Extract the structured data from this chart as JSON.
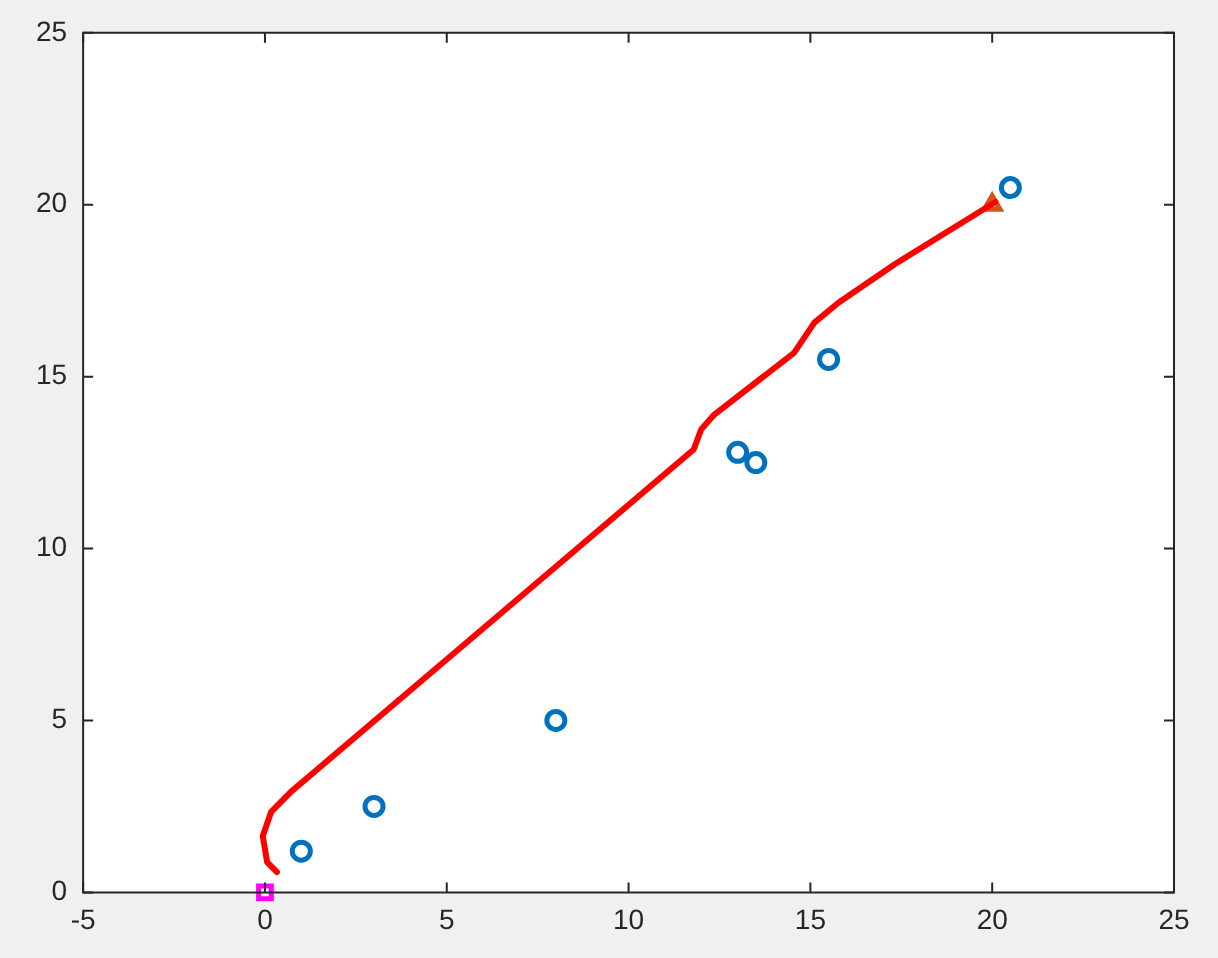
{
  "chart_data": {
    "type": "scatter",
    "xlim": [
      -5,
      25
    ],
    "ylim": [
      0,
      25
    ],
    "xticks": [
      -5,
      0,
      5,
      10,
      15,
      20,
      25
    ],
    "yticks": [
      0,
      5,
      10,
      15,
      20,
      25
    ],
    "grid": false,
    "legend": false,
    "series": [
      {
        "marker": "circle",
        "color": "#0072bd",
        "x": [
          1,
          3,
          8,
          13,
          13.5,
          15.5,
          20.5
        ],
        "values": [
          1.2,
          2.5,
          5,
          12.8,
          12.5,
          15.5,
          20.5
        ]
      },
      {
        "type": "line",
        "marker": "none",
        "line_style": "solid",
        "color": "#ff0000",
        "x": [
          0.33,
          0.06,
          -0.06,
          0.17,
          0.72,
          11.79,
          12.0,
          12.34,
          14.55,
          15.11,
          15.77,
          17.32,
          20.09
        ],
        "values": [
          0.59,
          0.88,
          1.64,
          2.34,
          2.93,
          12.88,
          13.47,
          13.88,
          15.69,
          16.57,
          17.15,
          18.27,
          20.08
        ]
      },
      {
        "marker": "square",
        "color": "#ff00ff",
        "x": [
          0
        ],
        "values": [
          0
        ]
      },
      {
        "marker": "triangle",
        "color": "#d95319",
        "x": [
          20
        ],
        "values": [
          20
        ]
      }
    ]
  }
}
